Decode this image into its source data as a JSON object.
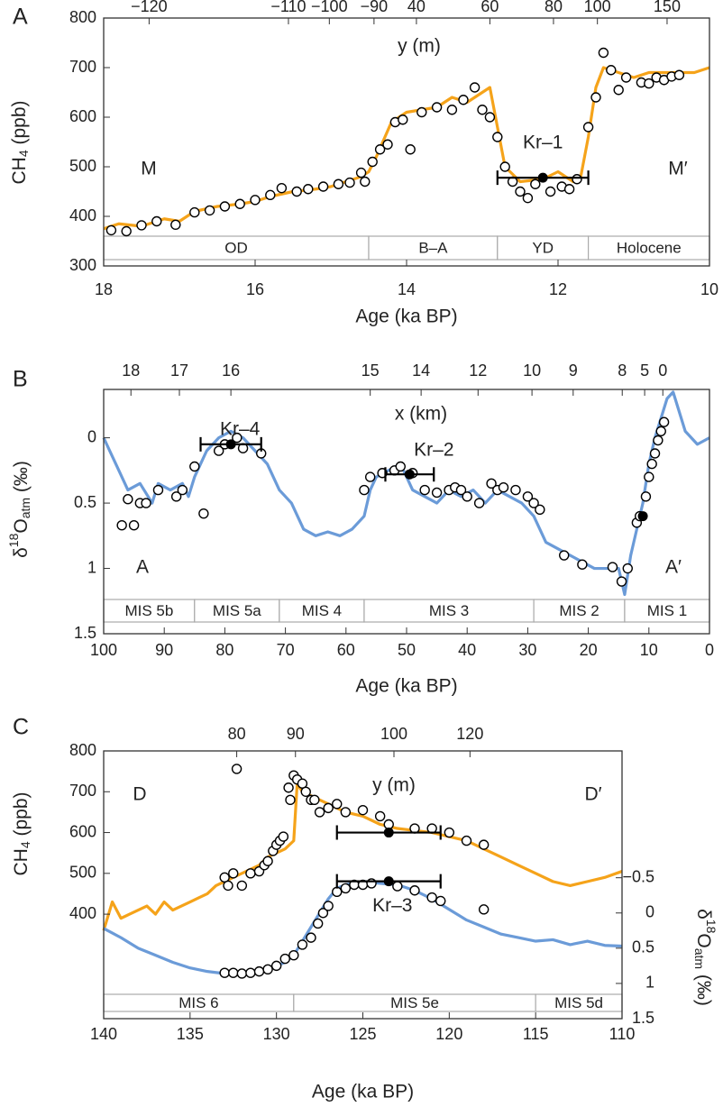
{
  "chart_data": [
    {
      "type": "line",
      "label": "A",
      "xlabel": "Age (ka BP)",
      "xlim": [
        18,
        10
      ],
      "xticks": [
        18,
        16,
        14,
        12,
        10
      ],
      "ylabel": [
        {
          "text": "CH"
        },
        {
          "text": "4",
          "script": "sub"
        },
        {
          "text": " (ppb)"
        }
      ],
      "ylim": [
        300,
        800
      ],
      "yticks": [
        300,
        400,
        500,
        600,
        700,
        800
      ],
      "x2label": "y (m)",
      "x2ticks": [
        {
          "value": 17.4,
          "label": "−120"
        },
        {
          "value": 15.56,
          "label": "−110"
        },
        {
          "value": 15.02,
          "label": "−100"
        },
        {
          "value": 14.43,
          "label": "−90"
        },
        {
          "value": 13.87,
          "label": "40"
        },
        {
          "value": 12.9,
          "label": "60"
        },
        {
          "value": 12.06,
          "label": "80"
        },
        {
          "value": 11.48,
          "label": "100"
        },
        {
          "value": 10.56,
          "label": "150"
        }
      ],
      "bands": [
        {
          "label": "OD",
          "range": [
            18,
            14.5
          ]
        },
        {
          "label": "B–A",
          "range": [
            14.5,
            12.8
          ]
        },
        {
          "label": "YD",
          "range": [
            12.8,
            11.6
          ]
        },
        {
          "label": "Holocene",
          "range": [
            11.6,
            10
          ]
        }
      ],
      "annotations": [
        "M",
        "M′"
      ],
      "series": [
        {
          "type": "line",
          "color": "#f5a31a",
          "x": [
            18,
            17.8,
            17.5,
            17.2,
            17.0,
            16.8,
            16.5,
            16.2,
            16.0,
            15.8,
            15.5,
            15.2,
            15.0,
            14.8,
            14.6,
            14.5,
            14.4,
            14.2,
            14.0,
            13.8,
            13.6,
            13.4,
            13.2,
            13.0,
            12.9,
            12.8,
            12.7,
            12.5,
            12.2,
            12.0,
            11.8,
            11.7,
            11.6,
            11.5,
            11.4,
            11.2,
            11.0,
            10.8,
            10.5,
            10.2,
            10.0
          ],
          "values": [
            375,
            385,
            380,
            395,
            390,
            410,
            420,
            425,
            430,
            440,
            450,
            455,
            460,
            470,
            480,
            490,
            520,
            590,
            610,
            615,
            620,
            640,
            630,
            650,
            660,
            580,
            500,
            470,
            475,
            490,
            470,
            480,
            560,
            660,
            700,
            690,
            680,
            690,
            690,
            690,
            700
          ]
        },
        {
          "type": "scatter",
          "color": "#000000",
          "x": [
            17.9,
            17.7,
            17.5,
            17.3,
            17.05,
            16.8,
            16.6,
            16.4,
            16.2,
            16.0,
            15.8,
            15.65,
            15.45,
            15.3,
            15.1,
            14.9,
            14.75,
            14.6,
            14.55,
            14.45,
            14.35,
            14.25,
            14.15,
            14.05,
            13.95,
            13.8,
            13.6,
            13.4,
            13.25,
            13.1,
            13.0,
            12.9,
            12.8,
            12.7,
            12.6,
            12.5,
            12.4,
            12.3,
            12.1,
            11.95,
            11.85,
            11.75,
            11.6,
            11.5,
            11.4,
            11.3,
            11.2,
            11.1,
            10.9,
            10.8,
            10.7,
            10.6,
            10.5,
            10.4
          ],
          "values": [
            372,
            370,
            382,
            390,
            383,
            408,
            412,
            420,
            425,
            433,
            443,
            457,
            450,
            455,
            460,
            465,
            468,
            488,
            470,
            510,
            535,
            545,
            590,
            595,
            535,
            610,
            620,
            615,
            635,
            660,
            615,
            600,
            560,
            500,
            470,
            450,
            437,
            465,
            450,
            460,
            455,
            475,
            580,
            640,
            730,
            695,
            655,
            680,
            670,
            668,
            680,
            675,
            682,
            685
          ]
        }
      ],
      "points": [
        {
          "name": "Kr–1",
          "x": 12.2,
          "value": 478,
          "xerr": 0.6
        }
      ]
    },
    {
      "type": "line",
      "label": "B",
      "xlabel": "Age (ka BP)",
      "xlim": [
        100,
        0
      ],
      "xticks": [
        100,
        90,
        80,
        70,
        60,
        50,
        40,
        30,
        20,
        10,
        0
      ],
      "ylabel": [
        {
          "text": "δ"
        },
        {
          "text": "18",
          "script": "sup"
        },
        {
          "text": "O"
        },
        {
          "text": "atm",
          "script": "sub"
        },
        {
          "text": " (‰)"
        }
      ],
      "ylim": [
        1.5,
        -0.37
      ],
      "yticks": [
        0,
        0.5,
        1,
        1.5
      ],
      "x2label": "x (km)",
      "x2ticks": [
        {
          "value": 95.5,
          "label": "18"
        },
        {
          "value": 87.5,
          "label": "17"
        },
        {
          "value": 79.0,
          "label": "16"
        },
        {
          "value": 56.0,
          "label": "15"
        },
        {
          "value": 47.6,
          "label": "14"
        },
        {
          "value": 38.2,
          "label": "12"
        },
        {
          "value": 29.3,
          "label": "10"
        },
        {
          "value": 22.5,
          "label": "9"
        },
        {
          "value": 14.4,
          "label": "8"
        },
        {
          "value": 10.7,
          "label": "5"
        },
        {
          "value": 7.7,
          "label": "0"
        }
      ],
      "bands": [
        {
          "label": "MIS 5b",
          "range": [
            100,
            85
          ]
        },
        {
          "label": "MIS 5a",
          "range": [
            85,
            71
          ]
        },
        {
          "label": "MIS 4",
          "range": [
            71,
            57
          ]
        },
        {
          "label": "MIS 3",
          "range": [
            57,
            29
          ]
        },
        {
          "label": "MIS 2",
          "range": [
            29,
            14
          ]
        },
        {
          "label": "MIS 1",
          "range": [
            14,
            0
          ]
        }
      ],
      "annotations": [
        "A",
        "A′"
      ],
      "series": [
        {
          "type": "line",
          "color": "#6b9bd8",
          "x": [
            100,
            98,
            96,
            94,
            92,
            91,
            89,
            87,
            86,
            85,
            83,
            81,
            79,
            77,
            75,
            73,
            71,
            69,
            67,
            65,
            63,
            61,
            59,
            57,
            56,
            55,
            53,
            51,
            49,
            47,
            45,
            43,
            41,
            39,
            37,
            35,
            33,
            31,
            29,
            27,
            25,
            23,
            21,
            19,
            17,
            15,
            14,
            13,
            12,
            11,
            10,
            9,
            8,
            7,
            6,
            5,
            4,
            3,
            2,
            0
          ],
          "values": [
            0.0,
            0.2,
            0.4,
            0.35,
            0.5,
            0.35,
            0.4,
            0.35,
            0.45,
            0.3,
            0.1,
            0.0,
            -0.05,
            0.0,
            0.1,
            0.2,
            0.4,
            0.5,
            0.7,
            0.75,
            0.72,
            0.75,
            0.7,
            0.6,
            0.4,
            0.3,
            0.25,
            0.2,
            0.4,
            0.45,
            0.5,
            0.4,
            0.45,
            0.4,
            0.5,
            0.4,
            0.45,
            0.5,
            0.6,
            0.8,
            0.85,
            0.9,
            0.95,
            1.0,
            1.0,
            1.0,
            1.2,
            0.9,
            0.7,
            0.5,
            0.2,
            0.0,
            -0.15,
            -0.3,
            -0.35,
            -0.2,
            -0.05,
            0.0,
            0.05,
            0.0
          ]
        },
        {
          "type": "scatter",
          "color": "#000000",
          "x": [
            97,
            96,
            95,
            94,
            93,
            91,
            88,
            87,
            85,
            83.5,
            81,
            80,
            78,
            77,
            74,
            57,
            56,
            54,
            52,
            51,
            49,
            47,
            45,
            43,
            42,
            41,
            40,
            38,
            36,
            35,
            34,
            32,
            30,
            29,
            28,
            24,
            21,
            16,
            14.5,
            13.5,
            12,
            11.5,
            10.5,
            10,
            9.5,
            9,
            8.5,
            8,
            7.5
          ],
          "values": [
            0.67,
            0.47,
            0.67,
            0.5,
            0.5,
            0.4,
            0.45,
            0.4,
            0.22,
            0.58,
            0.1,
            0.05,
            0.0,
            0.08,
            0.12,
            0.4,
            0.3,
            0.27,
            0.25,
            0.22,
            0.27,
            0.4,
            0.42,
            0.4,
            0.38,
            0.4,
            0.45,
            0.5,
            0.35,
            0.4,
            0.38,
            0.4,
            0.45,
            0.5,
            0.55,
            0.9,
            0.97,
            0.99,
            1.1,
            1.0,
            0.65,
            0.6,
            0.45,
            0.3,
            0.2,
            0.12,
            0.02,
            -0.05,
            -0.12
          ]
        }
      ],
      "points": [
        {
          "name": "Kr–4",
          "x": 79,
          "value": 0.05,
          "xerr": 5
        },
        {
          "name": "Kr–2",
          "x": 49.5,
          "value": 0.28,
          "xerr": 4
        },
        {
          "x": 11,
          "value": 0.6
        }
      ]
    },
    {
      "type": "line",
      "label": "C",
      "xlabel": "Age (ka BP)",
      "xlim": [
        140,
        110
      ],
      "xticks": [
        140,
        135,
        130,
        125,
        120,
        115,
        110
      ],
      "ylabel": [
        {
          "text": "CH"
        },
        {
          "text": "4",
          "script": "sub"
        },
        {
          "text": " (ppb)"
        }
      ],
      "ylim": [
        144,
        800
      ],
      "yticks": [
        400,
        500,
        600,
        700,
        800
      ],
      "y2label": [
        {
          "text": "δ"
        },
        {
          "text": "18",
          "script": "sup"
        },
        {
          "text": "O"
        },
        {
          "text": "atm",
          "script": "sub"
        },
        {
          "text": " (‰)"
        }
      ],
      "y2lim": [
        1.5,
        -2.3
      ],
      "y2ticks": [
        {
          "value": -0.5,
          "label": "−0.5"
        },
        0,
        0.5,
        1,
        1.5
      ],
      "x2label": "y (m)",
      "x2ticks": [
        {
          "value": 132.3,
          "label": "80"
        },
        {
          "value": 128.9,
          "label": "90"
        },
        {
          "value": 123.2,
          "label": "100"
        },
        {
          "value": 118.8,
          "label": "120"
        }
      ],
      "bands": [
        {
          "label": "MIS 6",
          "range": [
            140,
            129
          ]
        },
        {
          "label": "MIS 5e",
          "range": [
            129,
            115
          ]
        },
        {
          "label": "MIS 5d",
          "range": [
            115,
            110
          ]
        }
      ],
      "annotations": [
        "D",
        "D′"
      ],
      "series": [
        {
          "type": "line",
          "color": "#f5a31a",
          "x": [
            140,
            139.5,
            139,
            138.5,
            138,
            137.5,
            137,
            136.5,
            136,
            135.5,
            135,
            134.5,
            134,
            133.5,
            133,
            132.5,
            132,
            131.5,
            131,
            130.5,
            130,
            129.5,
            129,
            128.8,
            128.5,
            128,
            127.5,
            127,
            126.5,
            126,
            125,
            124,
            123,
            122,
            121,
            120,
            119,
            118,
            117,
            116,
            115,
            114,
            113,
            112,
            111,
            110
          ],
          "values": [
            360,
            430,
            390,
            400,
            410,
            420,
            400,
            430,
            410,
            420,
            430,
            440,
            450,
            470,
            480,
            490,
            500,
            510,
            520,
            540,
            550,
            560,
            580,
            720,
            700,
            690,
            680,
            670,
            660,
            650,
            640,
            620,
            610,
            605,
            600,
            590,
            580,
            560,
            540,
            520,
            500,
            480,
            470,
            480,
            490,
            505
          ]
        },
        {
          "type": "line",
          "axis": "y2",
          "color": "#6b9bd8",
          "x": [
            140,
            139,
            138,
            137,
            136,
            135,
            134,
            133,
            132,
            131,
            130,
            129.5,
            129,
            128.5,
            128,
            127.5,
            127,
            126.5,
            126,
            125,
            124,
            123,
            122,
            121,
            120,
            119,
            118,
            117,
            116,
            115,
            114,
            113,
            112,
            111,
            110
          ],
          "values": [
            0.22,
            0.35,
            0.5,
            0.6,
            0.7,
            0.78,
            0.83,
            0.86,
            0.85,
            0.82,
            0.75,
            0.7,
            0.6,
            0.4,
            0.2,
            0.0,
            -0.2,
            -0.35,
            -0.4,
            -0.45,
            -0.42,
            -0.4,
            -0.32,
            -0.2,
            -0.05,
            0.1,
            0.2,
            0.3,
            0.35,
            0.4,
            0.38,
            0.45,
            0.4,
            0.46,
            0.47
          ]
        },
        {
          "type": "scatter",
          "color": "#000000",
          "x": [
            132.3,
            133,
            132.8,
            132.5,
            132,
            131.5,
            131,
            130.7,
            130.5,
            130.2,
            130,
            129.8,
            129.6,
            129.3,
            129.2,
            129,
            128.8,
            128.5,
            128.3,
            128,
            127.8,
            127.5,
            127,
            126.5,
            126,
            125,
            124,
            123.5,
            122,
            121,
            120,
            119,
            118
          ],
          "values": [
            756,
            490,
            470,
            500,
            470,
            500,
            505,
            520,
            530,
            555,
            570,
            580,
            590,
            710,
            680,
            740,
            730,
            720,
            700,
            680,
            680,
            650,
            660,
            670,
            650,
            655,
            640,
            620,
            610,
            610,
            600,
            580,
            570
          ]
        },
        {
          "type": "scatter",
          "axis": "y2",
          "color": "#000000",
          "x": [
            133,
            132.5,
            132,
            131.5,
            131,
            130.5,
            130,
            129.5,
            129,
            128.5,
            128,
            127.6,
            127.3,
            127,
            126.5,
            126,
            125.5,
            125,
            124.5,
            123,
            122,
            121,
            120.5,
            118
          ],
          "values": [
            0.85,
            0.85,
            0.86,
            0.85,
            0.83,
            0.8,
            0.75,
            0.65,
            0.6,
            0.45,
            0.35,
            0.15,
            0.0,
            -0.1,
            -0.3,
            -0.35,
            -0.4,
            -0.4,
            -0.42,
            -0.38,
            -0.32,
            -0.22,
            -0.17,
            -0.05
          ]
        }
      ],
      "points": [
        {
          "x": 123.5,
          "value": 600,
          "xerr": 3
        },
        {
          "name": "Kr–3",
          "x": 123.5,
          "value": -0.45,
          "xerr": 3,
          "axis": "y2"
        }
      ]
    }
  ]
}
